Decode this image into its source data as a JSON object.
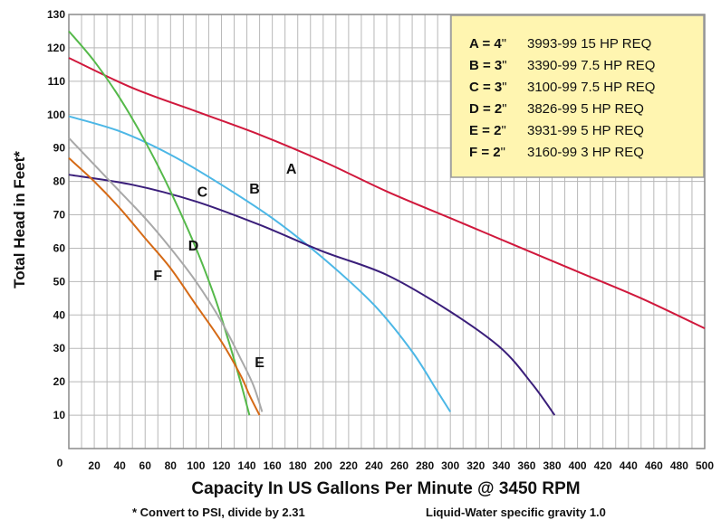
{
  "chart_data": {
    "type": "line",
    "title": "",
    "xlabel": "Capacity In US Gallons Per Minute @ 3450 RPM",
    "ylabel": "Total Head in Feet*",
    "xlim": [
      0,
      500
    ],
    "ylim": [
      0,
      130
    ],
    "grid": true,
    "x_ticks": [
      {
        "value": 20,
        "label": "20"
      },
      {
        "value": 40,
        "label": "40"
      },
      {
        "value": 60,
        "label": "60"
      },
      {
        "value": 80,
        "label": "80"
      },
      {
        "value": 100,
        "label": "100"
      },
      {
        "value": 120,
        "label": "120"
      },
      {
        "value": 140,
        "label": "140"
      },
      {
        "value": 160,
        "label": "160"
      },
      {
        "value": 180,
        "label": "180"
      },
      {
        "value": 200,
        "label": "200"
      },
      {
        "value": 220,
        "label": "220"
      },
      {
        "value": 240,
        "label": "240"
      },
      {
        "value": 260,
        "label": "260"
      },
      {
        "value": 280,
        "label": "280"
      },
      {
        "value": 300,
        "label": "300"
      },
      {
        "value": 320,
        "label": "320"
      },
      {
        "value": 340,
        "label": "340"
      },
      {
        "value": 360,
        "label": "360"
      },
      {
        "value": 380,
        "label": "380"
      },
      {
        "value": 400,
        "label": "400"
      },
      {
        "value": 420,
        "label": "420"
      },
      {
        "value": 440,
        "label": "440"
      },
      {
        "value": 460,
        "label": "460"
      },
      {
        "value": 480,
        "label": "480"
      },
      {
        "value": 500,
        "label": "500"
      }
    ],
    "y_ticks": [
      {
        "value": 10,
        "label": "10"
      },
      {
        "value": 20,
        "label": "20"
      },
      {
        "value": 30,
        "label": "30"
      },
      {
        "value": 40,
        "label": "40"
      },
      {
        "value": 50,
        "label": "50"
      },
      {
        "value": 60,
        "label": "60"
      },
      {
        "value": 70,
        "label": "70"
      },
      {
        "value": 80,
        "label": "80"
      },
      {
        "value": 90,
        "label": "90"
      },
      {
        "value": 100,
        "label": "100"
      },
      {
        "value": 110,
        "label": "110"
      },
      {
        "value": 120,
        "label": "120"
      },
      {
        "value": 130,
        "label": "130"
      }
    ],
    "origin_label": "0",
    "legend": {
      "placement": "top-right",
      "background": "#fff5b0",
      "entries": [
        {
          "key": "A = 4",
          "unit": "\"",
          "text": "3993-99  15 HP  REQ"
        },
        {
          "key": "B = 3",
          "unit": "\"",
          "text": "3390-99  7.5 HP  REQ"
        },
        {
          "key": "C = 3",
          "unit": "\"",
          "text": "3100-99  7.5 HP  REQ"
        },
        {
          "key": "D = 2",
          "unit": "\"",
          "text": "3826-99  5 HP  REQ"
        },
        {
          "key": "E = 2",
          "unit": "\"",
          "text": "3931-99  5 HP  REQ"
        },
        {
          "key": "F = 2",
          "unit": "\"",
          "text": "3160-99  3 HP  REQ"
        }
      ]
    },
    "series": [
      {
        "name": "A",
        "color": "#d0183c",
        "label_at": [
          175,
          84
        ],
        "points": [
          [
            0,
            117
          ],
          [
            50,
            108
          ],
          [
            100,
            101
          ],
          [
            150,
            94
          ],
          [
            200,
            86
          ],
          [
            250,
            77
          ],
          [
            300,
            69
          ],
          [
            350,
            61
          ],
          [
            400,
            53
          ],
          [
            450,
            45
          ],
          [
            500,
            36
          ]
        ]
      },
      {
        "name": "B",
        "color": "#4cb7e6",
        "label_at": [
          146,
          78
        ],
        "points": [
          [
            0,
            99.5
          ],
          [
            40,
            95
          ],
          [
            80,
            88
          ],
          [
            120,
            79
          ],
          [
            160,
            69
          ],
          [
            200,
            57
          ],
          [
            240,
            43
          ],
          [
            270,
            29
          ],
          [
            290,
            17
          ],
          [
            300,
            11
          ]
        ]
      },
      {
        "name": "C",
        "color": "#3a1e7a",
        "label_at": [
          105,
          77
        ],
        "points": [
          [
            0,
            82
          ],
          [
            50,
            79
          ],
          [
            100,
            74
          ],
          [
            150,
            67
          ],
          [
            200,
            59
          ],
          [
            250,
            52
          ],
          [
            300,
            41
          ],
          [
            340,
            30
          ],
          [
            365,
            19
          ],
          [
            382,
            10
          ]
        ]
      },
      {
        "name": "D",
        "color": "#55b94a",
        "label_at": [
          98,
          61
        ],
        "points": [
          [
            0,
            125
          ],
          [
            20,
            116
          ],
          [
            40,
            105
          ],
          [
            60,
            92
          ],
          [
            80,
            77
          ],
          [
            100,
            60
          ],
          [
            115,
            45
          ],
          [
            125,
            33
          ],
          [
            135,
            20
          ],
          [
            142,
            10
          ]
        ]
      },
      {
        "name": "E",
        "color": "#a8a8a8",
        "label_at": [
          150,
          26
        ],
        "points": [
          [
            0,
            93
          ],
          [
            20,
            85
          ],
          [
            40,
            77
          ],
          [
            60,
            69
          ],
          [
            80,
            60
          ],
          [
            100,
            50
          ],
          [
            120,
            38
          ],
          [
            135,
            27
          ],
          [
            145,
            19
          ],
          [
            152,
            11
          ]
        ]
      },
      {
        "name": "F",
        "color": "#d56a16",
        "label_at": [
          70,
          52
        ],
        "points": [
          [
            0,
            87
          ],
          [
            20,
            80
          ],
          [
            40,
            72
          ],
          [
            60,
            63
          ],
          [
            80,
            54
          ],
          [
            100,
            43
          ],
          [
            120,
            32
          ],
          [
            135,
            22
          ],
          [
            142,
            16
          ],
          [
            150,
            10
          ]
        ]
      }
    ]
  },
  "footnotes": {
    "psi": "* Convert to PSI, divide by 2.31",
    "gravity": "Liquid-Water specific gravity 1.0"
  }
}
